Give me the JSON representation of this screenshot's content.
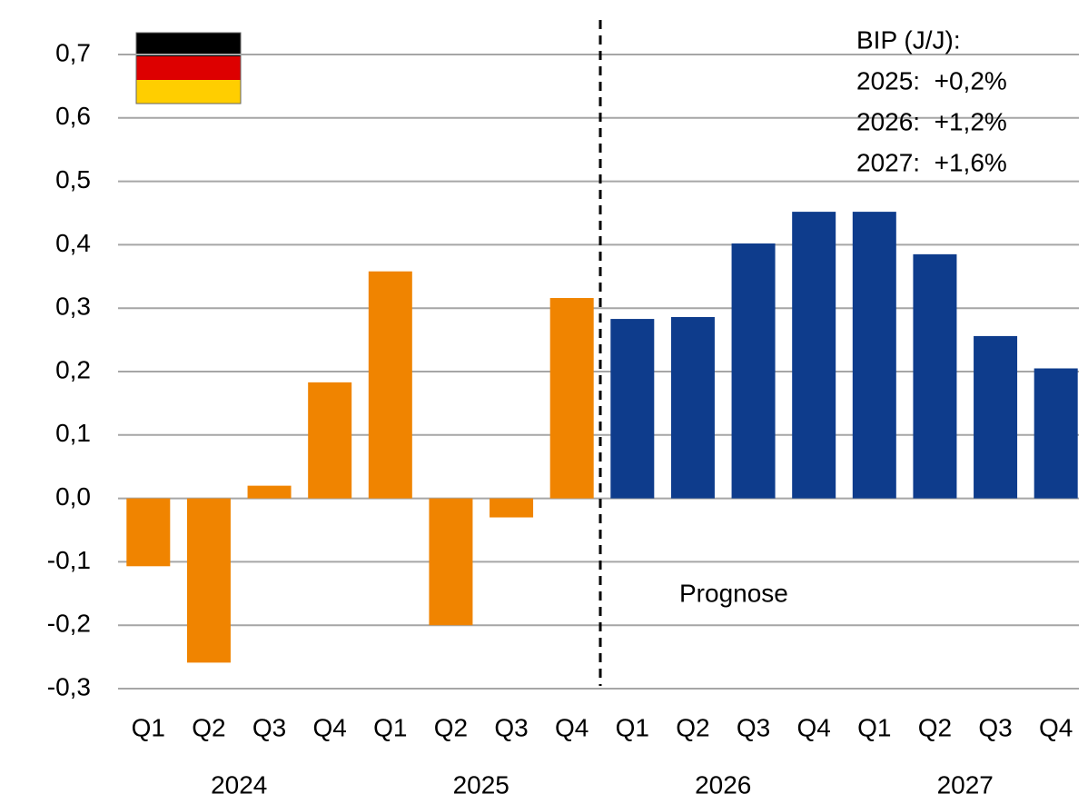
{
  "chart_data": {
    "type": "bar",
    "categories": [
      "Q1",
      "Q2",
      "Q3",
      "Q4",
      "Q1",
      "Q2",
      "Q3",
      "Q4",
      "Q1",
      "Q2",
      "Q3",
      "Q4",
      "Q1",
      "Q2",
      "Q3",
      "Q4"
    ],
    "groups": [
      "2024",
      "2025",
      "2026",
      "2027"
    ],
    "values": [
      -0.107,
      -0.259,
      0.02,
      0.183,
      0.358,
      -0.2,
      -0.03,
      0.316,
      0.283,
      0.286,
      0.402,
      0.452,
      0.452,
      0.385,
      0.256,
      0.205
    ],
    "colors": [
      "#f08400",
      "#f08400",
      "#f08400",
      "#f08400",
      "#f08400",
      "#f08400",
      "#f08400",
      "#f08400",
      "#0e3c8c",
      "#0e3c8c",
      "#0e3c8c",
      "#0e3c8c",
      "#0e3c8c",
      "#0e3c8c",
      "#0e3c8c",
      "#0e3c8c"
    ],
    "ylim": [
      -0.3,
      0.7
    ],
    "yticks": [
      {
        "value": -0.3,
        "label": "-0,3"
      },
      {
        "value": -0.2,
        "label": "-0,2"
      },
      {
        "value": -0.1,
        "label": "-0,1"
      },
      {
        "value": 0,
        "label": "0,0"
      },
      {
        "value": 0.1,
        "label": "0,1"
      },
      {
        "value": 0.2,
        "label": "0,2"
      },
      {
        "value": 0.3,
        "label": "0,3"
      },
      {
        "value": 0.4,
        "label": "0,4"
      },
      {
        "value": 0.5,
        "label": "0,5"
      },
      {
        "value": 0.6,
        "label": "0,6"
      },
      {
        "value": 0.7,
        "label": "0,7"
      }
    ],
    "grid": true,
    "annotations": [
      "Prognose",
      "BIP (J/J):",
      "2025:  +0,2%",
      "2026:  +1,2%",
      "2027:  +1,6%"
    ]
  }
}
